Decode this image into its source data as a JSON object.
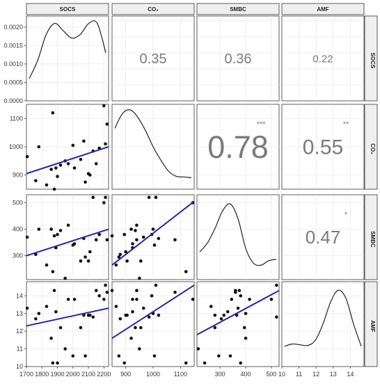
{
  "chart_data": {
    "type": "scatter",
    "variables": [
      "SOCS",
      "CO₂",
      "SMBC",
      "AMF"
    ],
    "axes": [
      {
        "lim": [
          1700,
          2230
        ],
        "ticks": [
          1700,
          1800,
          1900,
          2000,
          2100,
          2200
        ],
        "tick_labels": [
          "1700",
          "1800",
          "1900",
          "2000",
          "2100",
          "2200"
        ]
      },
      {
        "lim": [
          850,
          1150
        ],
        "ticks": [
          900,
          1000,
          1100
        ],
        "tick_labels": [
          "900",
          "1000",
          "1100"
        ]
      },
      {
        "lim": [
          210,
          530
        ],
        "ticks": [
          300,
          400,
          500
        ],
        "tick_labels": [
          "300",
          "400",
          "500"
        ]
      },
      {
        "lim": [
          10,
          14.8
        ],
        "ticks": [
          10,
          11,
          12,
          13,
          14
        ],
        "tick_labels": [
          "10",
          "11",
          "12",
          "13",
          "14"
        ]
      }
    ],
    "density_axis": {
      "lim": [
        0,
        0.0023
      ],
      "ticks": [
        0,
        0.0005,
        0.001,
        0.0015,
        0.002
      ],
      "tick_labels": [
        "0.0000",
        "0.0005",
        "0.0010",
        "0.0015",
        "0.0020"
      ]
    },
    "density_curves": [
      [
        0.0006,
        0.0011,
        0.0018,
        0.0021,
        0.0019,
        0.0017,
        0.0018,
        0.0021,
        0.0021,
        0.0013
      ],
      [
        0.75,
        0.95,
        1.0,
        0.9,
        0.72,
        0.5,
        0.32,
        0.17,
        0.1,
        0.09,
        0.08
      ],
      [
        0.3,
        0.42,
        0.62,
        0.86,
        0.95,
        0.75,
        0.35,
        0.15,
        0.12,
        0.18,
        0.2
      ],
      [
        0.2,
        0.23,
        0.22,
        0.21,
        0.28,
        0.5,
        0.8,
        0.96,
        0.85,
        0.5,
        0.2
      ]
    ],
    "correlations": [
      {
        "row": 0,
        "col": 1,
        "r": "0.35",
        "stars": "",
        "size": 20
      },
      {
        "row": 0,
        "col": 2,
        "r": "0.36",
        "stars": "",
        "size": 20
      },
      {
        "row": 0,
        "col": 3,
        "r": "0.22",
        "stars": "",
        "size": 15
      },
      {
        "row": 1,
        "col": 2,
        "r": "0.78",
        "stars": "***",
        "size": 45
      },
      {
        "row": 1,
        "col": 3,
        "r": "0.55",
        "stars": "**",
        "size": 30
      },
      {
        "row": 2,
        "col": 3,
        "r": "0.47",
        "stars": "*",
        "size": 26
      }
    ],
    "points": {
      "SOCS": [
        1705,
        1760,
        1780,
        1830,
        1860,
        1870,
        1880,
        1890,
        1900,
        1920,
        1950,
        1970,
        2000,
        2010,
        2050,
        2070,
        2080,
        2100,
        2110,
        2130,
        2150,
        2170,
        2200,
        2210,
        2220
      ],
      "CO2": [
        965,
        880,
        1000,
        865,
        920,
        1120,
        850,
        925,
        895,
        935,
        950,
        940,
        1005,
        925,
        955,
        1020,
        875,
        905,
        900,
        985,
        940,
        995,
        1145,
        1010,
        1080
      ],
      "SMBC": [
        370,
        305,
        400,
        265,
        400,
        240,
        375,
        330,
        380,
        395,
        215,
        415,
        340,
        345,
        280,
        365,
        295,
        280,
        315,
        520,
        360,
        380,
        500,
        520,
        360
      ],
      "AMF": [
        13.3,
        12.7,
        13.0,
        13.4,
        11.6,
        10.2,
        14.3,
        13.1,
        10.2,
        12.2,
        11.0,
        13.8,
        10.6,
        13.8,
        12.2,
        12.9,
        10.6,
        12.9,
        12.9,
        12.8,
        14.3,
        14.0,
        13.8,
        14.6,
        14.2
      ]
    },
    "regression_lines": [
      {
        "row": 1,
        "col": 0,
        "x": [
          1700,
          2230
        ],
        "y": [
          905,
          1000
        ]
      },
      {
        "row": 2,
        "col": 0,
        "x": [
          1700,
          2230
        ],
        "y": [
          300,
          400
        ]
      },
      {
        "row": 2,
        "col": 1,
        "x": [
          850,
          1150
        ],
        "y": [
          265,
          505
        ]
      },
      {
        "row": 3,
        "col": 0,
        "x": [
          1700,
          2230
        ],
        "y": [
          12.3,
          13.3
        ]
      },
      {
        "row": 3,
        "col": 1,
        "x": [
          850,
          1150
        ],
        "y": [
          11.6,
          14.6
        ]
      },
      {
        "row": 3,
        "col": 2,
        "x": [
          210,
          530
        ],
        "y": [
          11.8,
          14.3
        ]
      }
    ],
    "colors": {
      "line": "#1f28a6",
      "point": "#111111",
      "text": "#7a7a7a",
      "strip": "#efefef",
      "grid": "#e6e6e6",
      "border": "#333333"
    },
    "grid": true
  }
}
